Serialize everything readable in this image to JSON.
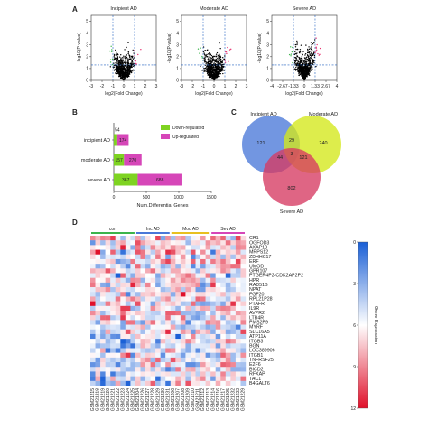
{
  "panels": {
    "a": "A",
    "b": "B",
    "c": "C",
    "d": "D"
  },
  "chart_data": [
    {
      "type": "scatter",
      "panel": "A",
      "subtype": "volcano",
      "xlabel": "log2(Fold Change)",
      "ylabel": "-log10(P-value)",
      "plots": [
        {
          "title": "Incipient AD",
          "xticks": [
            "-3",
            "-2",
            "-1",
            "0",
            "1",
            "2",
            "3"
          ],
          "xlim": [
            -3,
            3
          ],
          "threshold_x": [
            -1,
            1
          ],
          "threshold_y": 1.3
        },
        {
          "title": "Moderate AD",
          "xticks": [
            "-3",
            "-2",
            "-1",
            "0",
            "1",
            "2",
            "3"
          ],
          "xlim": [
            -3,
            3
          ],
          "threshold_x": [
            -1,
            1
          ],
          "threshold_y": 1.3
        },
        {
          "title": "Severe AD",
          "xticks": [
            "-4",
            "-2.67",
            "-1.33",
            "0",
            "1.33",
            "2.67",
            "4"
          ],
          "xlim": [
            -4,
            4
          ],
          "threshold_x": [
            -1.33,
            1.33
          ],
          "threshold_y": 1.3
        }
      ],
      "yticks": [
        "0",
        "1",
        "2",
        "3",
        "4",
        "5"
      ],
      "ylim": [
        0,
        5.5
      ],
      "colors": {
        "down": "#3cb44b",
        "up": "#e8306f",
        "ns": "#000000",
        "threshold": "#2060c0"
      }
    },
    {
      "type": "bar",
      "panel": "B",
      "stacked": true,
      "horizontal": true,
      "title": "",
      "xlabel": "Num.Differential Genes",
      "categories": [
        "incipient AD",
        "moderate AD",
        "severe AD"
      ],
      "series": [
        {
          "name": "Down-regulated",
          "values": [
            54,
            157,
            367
          ],
          "color": "#7ed321"
        },
        {
          "name": "Up-regulated",
          "values": [
            174,
            270,
            688
          ],
          "color": "#d646b8"
        }
      ],
      "bar_labels": {
        "down": [
          "54",
          "157",
          "367"
        ],
        "up": [
          "174",
          "270",
          "688"
        ]
      },
      "xticks": [
        "0",
        "500",
        "1000",
        "1500"
      ],
      "xlim": [
        0,
        1500
      ],
      "legend": "top-right"
    },
    {
      "type": "venn",
      "panel": "C",
      "sets": [
        {
          "name": "Incipient AD",
          "color": "#4a78d8"
        },
        {
          "name": "Moderate AD",
          "color": "#d4e81a"
        },
        {
          "name": "Severe AD",
          "color": "#d63a62"
        }
      ],
      "regions": {
        "incipient_only": "121",
        "moderate_only": "240",
        "severe_only": "802",
        "incipient_moderate": "29",
        "incipient_severe": "44",
        "moderate_severe": "121",
        "all": "3"
      }
    },
    {
      "type": "heatmap",
      "panel": "D",
      "groups": [
        {
          "name": "con",
          "color": "#3cb44b",
          "count": 9
        },
        {
          "name": "Inc AD",
          "color": "#4a78d8",
          "count": 7
        },
        {
          "name": "Mod AD",
          "color": "#e8c020",
          "count": 8
        },
        {
          "name": "Sev AD",
          "color": "#d646b8",
          "count": 7
        }
      ],
      "genes": [
        "CR1",
        "OGFOD3",
        "AKAP13",
        "MRPS12",
        "ZDHHC17",
        "ERF",
        "UMOD",
        "GPR107",
        "PTGER4P2-CDK2AP2P2",
        "HPR",
        "RAD51B",
        "NPAT",
        "FGF20",
        "RPL21P28",
        "PTAFR",
        "IL9R",
        "AVPR2",
        "LTB4R",
        "PMS2P9",
        "MYRF",
        "SLC16A5",
        "ATP11A",
        "ITGB3",
        "BGN",
        "LOC389906",
        "ITGB1",
        "TNFRSF25",
        "E2F6",
        "BICD2",
        "RFXAP",
        "TAC1",
        "B4GALT6"
      ],
      "samples": [
        "GSM21215",
        "GSM21218",
        "GSM21219",
        "GSM21220",
        "GSM21221",
        "GSM21222",
        "GSM21223",
        "GSM21224",
        "GSM21225",
        "GSM21204",
        "GSM21226",
        "GSM21227",
        "GSM21228",
        "GSM21229",
        "GSM21230",
        "GSM21231",
        "GSM21206",
        "GSM21207",
        "GSM21208",
        "GSM21209",
        "GSM21210",
        "GSM21211",
        "GSM21212",
        "GSM21213",
        "GSM21214",
        "GSM21216",
        "GSM21217",
        "GSM21205",
        "GSM21232",
        "GSM21233",
        "GSM21229"
      ],
      "colorbar": {
        "label": "Gene Expression",
        "ticks": [
          "0",
          "3",
          "6",
          "9",
          "12"
        ],
        "range": [
          0,
          12
        ],
        "low_color": "#1a5fd6",
        "mid_color": "#ffffff",
        "high_color": "#e0102a"
      }
    }
  ]
}
